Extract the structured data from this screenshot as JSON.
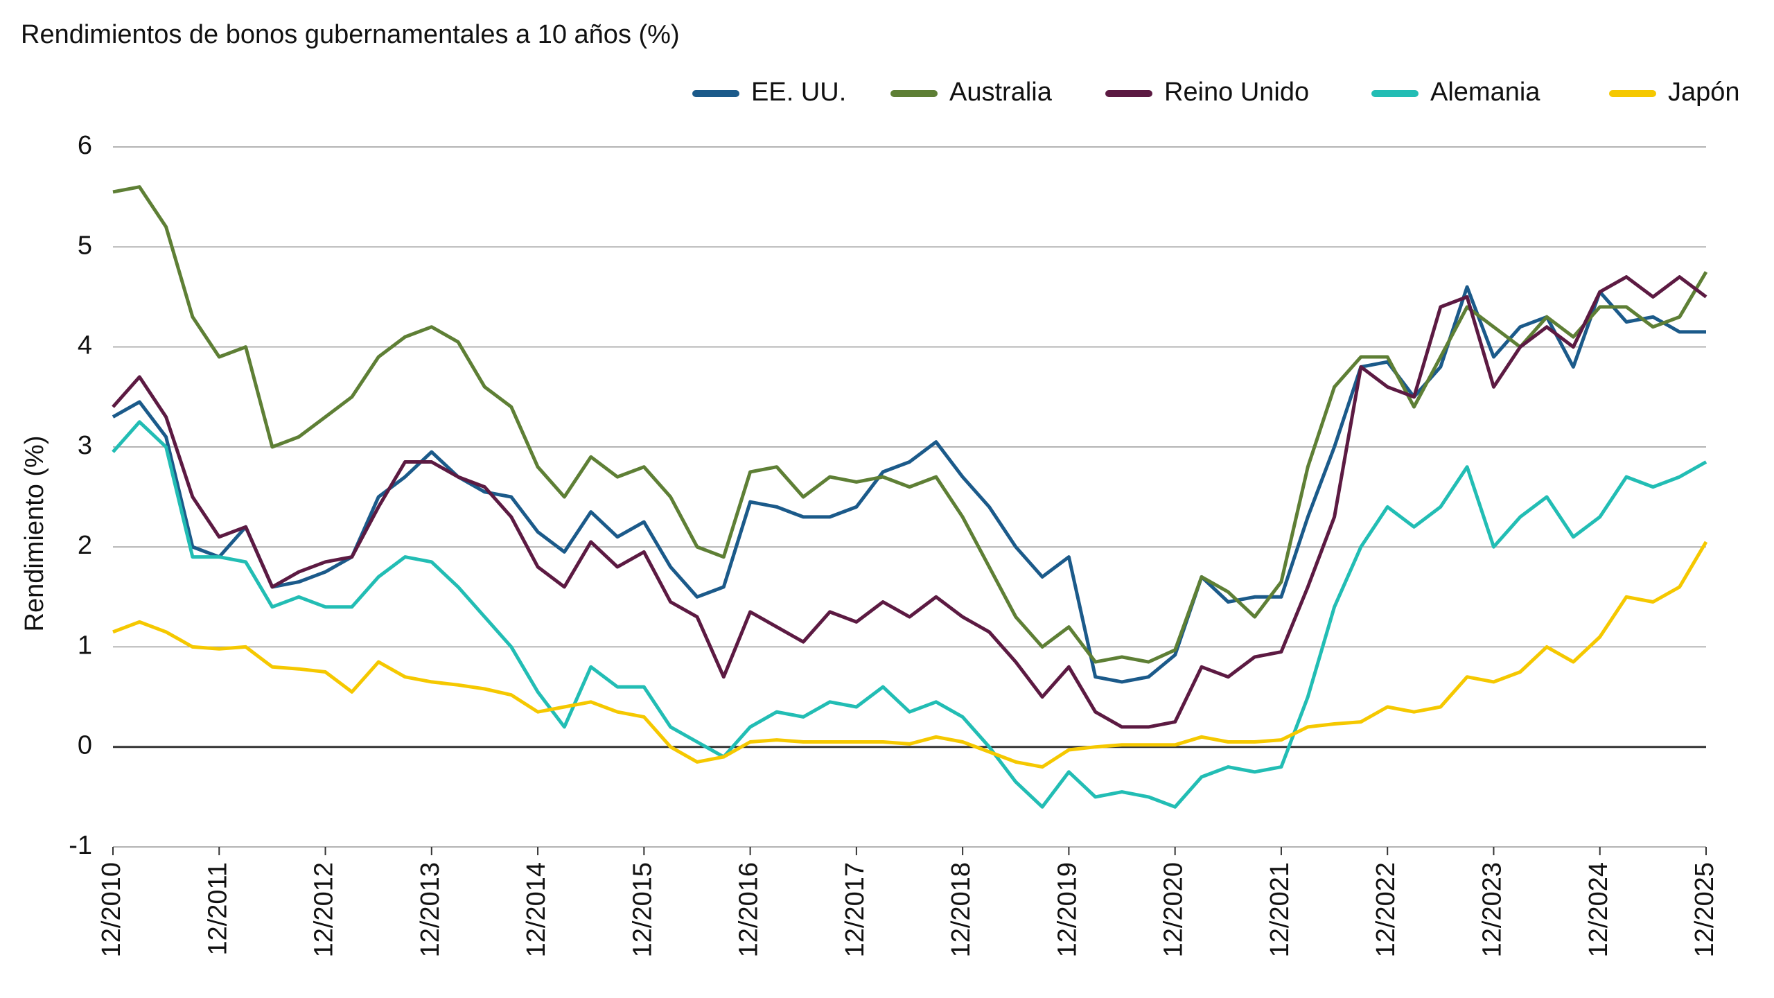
{
  "chart_data": {
    "type": "line",
    "title": "Rendimientos de bonos gubernamentales a 10 años (%)",
    "y_label": "Rendimiento (%)",
    "x": [
      "2010-12",
      "2011-03",
      "2011-06",
      "2011-09",
      "2011-12",
      "2012-03",
      "2012-06",
      "2012-09",
      "2012-12",
      "2013-03",
      "2013-06",
      "2013-09",
      "2013-12",
      "2014-03",
      "2014-06",
      "2014-09",
      "2014-12",
      "2015-03",
      "2015-06",
      "2015-09",
      "2015-12",
      "2016-03",
      "2016-06",
      "2016-09",
      "2016-12",
      "2017-03",
      "2017-06",
      "2017-09",
      "2017-12",
      "2018-03",
      "2018-06",
      "2018-09",
      "2018-12",
      "2019-03",
      "2019-06",
      "2019-09",
      "2019-12",
      "2020-03",
      "2020-06",
      "2020-09",
      "2020-12",
      "2021-03",
      "2021-06",
      "2021-09",
      "2021-12",
      "2022-03",
      "2022-06",
      "2022-09",
      "2022-12",
      "2023-03",
      "2023-06",
      "2023-09",
      "2023-12",
      "2024-03",
      "2024-06",
      "2024-09",
      "2024-12",
      "2025-03",
      "2025-06",
      "2025-09",
      "2025-12"
    ],
    "xlim": [
      "2010-12",
      "2025-12"
    ],
    "xticks": [
      {
        "value": "2010-12",
        "label": "12/2010"
      },
      {
        "value": "2011-12",
        "label": "12/2011"
      },
      {
        "value": "2012-12",
        "label": "12/2012"
      },
      {
        "value": "2013-12",
        "label": "12/2013"
      },
      {
        "value": "2014-12",
        "label": "12/2014"
      },
      {
        "value": "2015-12",
        "label": "12/2015"
      },
      {
        "value": "2016-12",
        "label": "12/2016"
      },
      {
        "value": "2017-12",
        "label": "12/2017"
      },
      {
        "value": "2018-12",
        "label": "12/2018"
      },
      {
        "value": "2019-12",
        "label": "12/2019"
      },
      {
        "value": "2020-12",
        "label": "12/2020"
      },
      {
        "value": "2021-12",
        "label": "12/2021"
      },
      {
        "value": "2022-12",
        "label": "12/2022"
      },
      {
        "value": "2023-12",
        "label": "12/2023"
      },
      {
        "value": "2024-12",
        "label": "12/2024"
      },
      {
        "value": "2025-12",
        "label": "12/2025"
      }
    ],
    "ylim": [
      -1,
      6
    ],
    "yticks": [
      -1,
      0,
      1,
      2,
      3,
      4,
      5,
      6
    ],
    "grid": true,
    "legend": "top-right",
    "series": [
      {
        "name": "EE. UU.",
        "color": "#1b5a8a",
        "values": [
          3.3,
          3.45,
          3.1,
          2.0,
          1.9,
          2.2,
          1.6,
          1.65,
          1.75,
          1.9,
          2.5,
          2.7,
          2.95,
          2.7,
          2.55,
          2.5,
          2.15,
          1.95,
          2.35,
          2.1,
          2.25,
          1.8,
          1.5,
          1.6,
          2.45,
          2.4,
          2.3,
          2.3,
          2.4,
          2.75,
          2.85,
          3.05,
          2.7,
          2.4,
          2.0,
          1.7,
          1.9,
          0.7,
          0.65,
          0.7,
          0.92,
          1.7,
          1.45,
          1.5,
          1.5,
          2.3,
          3.0,
          3.8,
          3.85,
          3.5,
          3.8,
          4.6,
          3.9,
          4.2,
          4.3,
          3.8,
          4.55,
          4.25,
          4.3,
          4.15,
          4.15
        ]
      },
      {
        "name": "Australia",
        "color": "#5e7f35",
        "values": [
          5.55,
          5.6,
          5.2,
          4.3,
          3.9,
          4.0,
          3.0,
          3.1,
          3.3,
          3.5,
          3.9,
          4.1,
          4.2,
          4.05,
          3.6,
          3.4,
          2.8,
          2.5,
          2.9,
          2.7,
          2.8,
          2.5,
          2.0,
          1.9,
          2.75,
          2.8,
          2.5,
          2.7,
          2.65,
          2.7,
          2.6,
          2.7,
          2.3,
          1.8,
          1.3,
          1.0,
          1.2,
          0.85,
          0.9,
          0.85,
          0.97,
          1.7,
          1.55,
          1.3,
          1.65,
          2.8,
          3.6,
          3.9,
          3.9,
          3.4,
          3.9,
          4.4,
          4.2,
          4.0,
          4.3,
          4.1,
          4.4,
          4.4,
          4.2,
          4.3,
          4.75
        ]
      },
      {
        "name": "Reino Unido",
        "color": "#5c1a42",
        "values": [
          3.4,
          3.7,
          3.3,
          2.5,
          2.1,
          2.2,
          1.6,
          1.75,
          1.85,
          1.9,
          2.4,
          2.85,
          2.85,
          2.7,
          2.6,
          2.3,
          1.8,
          1.6,
          2.05,
          1.8,
          1.95,
          1.45,
          1.3,
          0.7,
          1.35,
          1.2,
          1.05,
          1.35,
          1.25,
          1.45,
          1.3,
          1.5,
          1.3,
          1.15,
          0.85,
          0.5,
          0.8,
          0.35,
          0.2,
          0.2,
          0.25,
          0.8,
          0.7,
          0.9,
          0.95,
          1.6,
          2.3,
          3.8,
          3.6,
          3.5,
          4.4,
          4.5,
          3.6,
          4.0,
          4.2,
          4.0,
          4.55,
          4.7,
          4.5,
          4.7,
          4.5
        ]
      },
      {
        "name": "Alemania",
        "color": "#22bdb4",
        "values": [
          2.95,
          3.25,
          3.0,
          1.9,
          1.9,
          1.85,
          1.4,
          1.5,
          1.4,
          1.4,
          1.7,
          1.9,
          1.85,
          1.6,
          1.3,
          1.0,
          0.55,
          0.2,
          0.8,
          0.6,
          0.6,
          0.2,
          0.05,
          -0.1,
          0.2,
          0.35,
          0.3,
          0.45,
          0.4,
          0.6,
          0.35,
          0.45,
          0.3,
          0.0,
          -0.35,
          -0.6,
          -0.25,
          -0.5,
          -0.45,
          -0.5,
          -0.6,
          -0.3,
          -0.2,
          -0.25,
          -0.2,
          0.5,
          1.4,
          2.0,
          2.4,
          2.2,
          2.4,
          2.8,
          2.0,
          2.3,
          2.5,
          2.1,
          2.3,
          2.7,
          2.6,
          2.7,
          2.85
        ]
      },
      {
        "name": "Japón",
        "color": "#f5c800",
        "values": [
          1.15,
          1.25,
          1.15,
          1.0,
          0.98,
          1.0,
          0.8,
          0.78,
          0.75,
          0.55,
          0.85,
          0.7,
          0.65,
          0.62,
          0.58,
          0.52,
          0.35,
          0.4,
          0.45,
          0.35,
          0.3,
          0.0,
          -0.15,
          -0.1,
          0.05,
          0.07,
          0.05,
          0.05,
          0.05,
          0.05,
          0.03,
          0.1,
          0.05,
          -0.05,
          -0.15,
          -0.2,
          -0.03,
          0.0,
          0.02,
          0.02,
          0.02,
          0.1,
          0.05,
          0.05,
          0.07,
          0.2,
          0.23,
          0.25,
          0.4,
          0.35,
          0.4,
          0.7,
          0.65,
          0.75,
          1.0,
          0.85,
          1.1,
          1.5,
          1.45,
          1.6,
          2.05
        ]
      }
    ]
  }
}
